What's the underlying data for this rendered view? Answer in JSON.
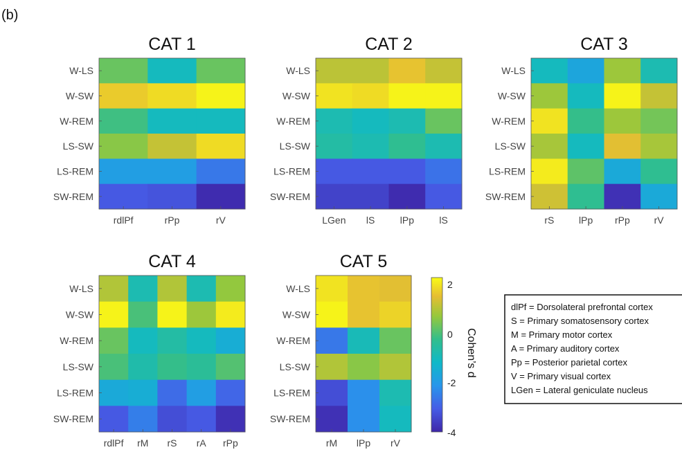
{
  "panel_label": "(b)",
  "chart_data": [
    {
      "type": "heatmap",
      "title": "CAT 1",
      "rows": [
        "W-LS",
        "W-SW",
        "W-REM",
        "LS-SW",
        "LS-REM",
        "SW-REM"
      ],
      "columns": [
        "rdlPf",
        "rPp",
        "rV"
      ],
      "values": [
        [
          0.3,
          -1.0,
          0.3
        ],
        [
          1.7,
          1.9,
          2.2
        ],
        [
          -0.1,
          -1.0,
          -1.0
        ],
        [
          0.6,
          1.2,
          1.9
        ],
        [
          -1.9,
          -1.9,
          -2.6
        ],
        [
          -3.1,
          -3.2,
          -3.9
        ]
      ]
    },
    {
      "type": "heatmap",
      "title": "CAT 2",
      "rows": [
        "W-LS",
        "W-SW",
        "W-REM",
        "LS-SW",
        "LS-REM",
        "SW-REM"
      ],
      "columns": [
        "LGen",
        "lS",
        "lPp",
        "lS"
      ],
      "values": [
        [
          1.1,
          1.1,
          1.6,
          1.2
        ],
        [
          2.0,
          1.9,
          2.2,
          2.2
        ],
        [
          -0.8,
          -1.0,
          -0.8,
          0.3
        ],
        [
          -0.6,
          -0.8,
          -0.3,
          -0.8
        ],
        [
          -3.1,
          -3.1,
          -3.1,
          -2.7
        ],
        [
          -3.5,
          -3.5,
          -3.9,
          -3.1
        ]
      ]
    },
    {
      "type": "heatmap",
      "title": "CAT 3",
      "rows": [
        "W-LS",
        "W-SW",
        "W-REM",
        "LS-SW",
        "LS-REM",
        "SW-REM"
      ],
      "columns": [
        "rS",
        "lPp",
        "rPp",
        "rV"
      ],
      "values": [
        [
          -1.0,
          -1.7,
          0.8,
          -0.8
        ],
        [
          0.8,
          -1.0,
          2.2,
          1.2
        ],
        [
          2.0,
          -0.2,
          0.8,
          0.4
        ],
        [
          0.9,
          -1.0,
          1.5,
          0.9
        ],
        [
          2.1,
          0.2,
          -1.6,
          -0.3
        ],
        [
          1.3,
          -0.3,
          -3.8,
          -1.6
        ]
      ]
    },
    {
      "type": "heatmap",
      "title": "CAT 4",
      "rows": [
        "W-LS",
        "W-SW",
        "W-REM",
        "LS-SW",
        "LS-REM",
        "SW-REM"
      ],
      "columns": [
        "rdlPf",
        "rM",
        "rS",
        "rA",
        "rPp"
      ],
      "values": [
        [
          1.0,
          -0.8,
          1.0,
          -0.8,
          0.7
        ],
        [
          2.2,
          0.0,
          2.2,
          0.8,
          2.1
        ],
        [
          0.3,
          -1.0,
          -0.6,
          -1.0,
          -1.5
        ],
        [
          0.0,
          -0.7,
          -0.2,
          -0.4,
          0.1
        ],
        [
          -1.6,
          -1.5,
          -2.8,
          -1.9,
          -2.9
        ],
        [
          -3.1,
          -2.5,
          -3.3,
          -3.1,
          -3.8
        ]
      ]
    },
    {
      "type": "heatmap",
      "title": "CAT 5",
      "rows": [
        "W-LS",
        "W-SW",
        "W-REM",
        "LS-SW",
        "LS-REM",
        "SW-REM"
      ],
      "columns": [
        "rM",
        "lPp",
        "rV"
      ],
      "values": [
        [
          2.0,
          1.6,
          1.5
        ],
        [
          2.2,
          1.6,
          1.8
        ],
        [
          -2.6,
          -0.9,
          0.3
        ],
        [
          1.0,
          0.6,
          1.0
        ],
        [
          -3.3,
          -2.2,
          -0.8
        ],
        [
          -3.8,
          -2.2,
          -1.0
        ]
      ]
    }
  ],
  "colorbar": {
    "label": "Cohen’s d",
    "range": [
      -4,
      2.3
    ],
    "ticks": [
      "2",
      "0",
      "-2",
      "-4"
    ]
  },
  "legend": [
    "dlPf = Dorsolateral prefrontal cortex",
    "S = Primary somatosensory cortex",
    "M = Primary motor cortex",
    "A = Primary auditory cortex",
    "Pp = Posterior parietal cortex",
    "V = Primary visual cortex",
    "LGen = Lateral geniculate nucleus"
  ]
}
